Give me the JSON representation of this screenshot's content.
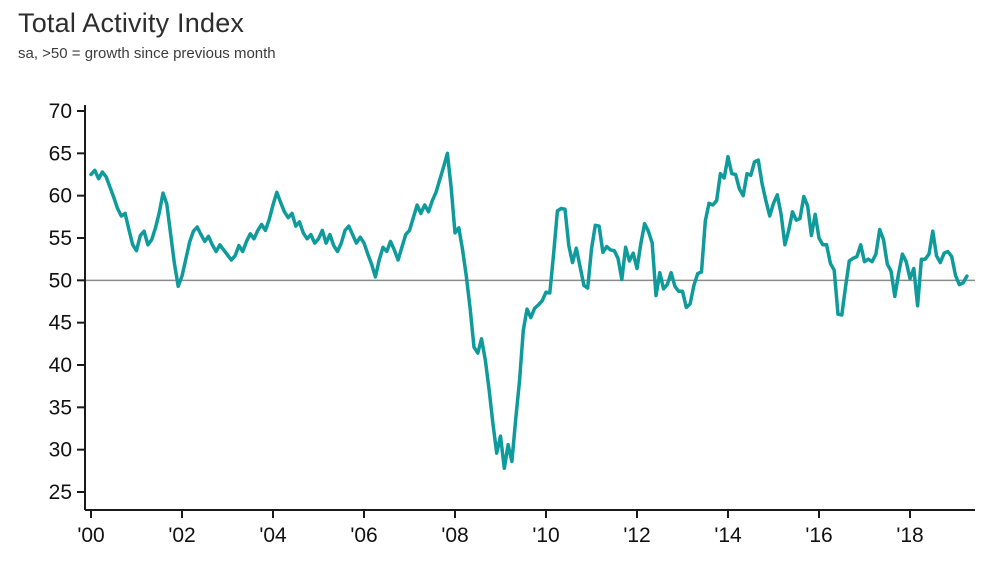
{
  "header": {
    "title": "Total Activity Index",
    "subtitle": "sa, >50 = growth since previous month"
  },
  "chart_data": {
    "type": "line",
    "title": "Total Activity Index",
    "subtitle": "sa, >50 = growth since previous month",
    "series_name": "Total Activity Index (sa)",
    "frequency": "monthly",
    "x_start_year": 2000,
    "x_start_month": 1,
    "x_end_label": "2019-04",
    "ylim": [
      25,
      70
    ],
    "y_ticks": [
      70,
      65,
      60,
      55,
      50,
      45,
      40,
      35,
      30,
      25
    ],
    "x_ticks": [
      {
        "year": 2000,
        "label": "'00"
      },
      {
        "year": 2002,
        "label": "'02"
      },
      {
        "year": 2004,
        "label": "'04"
      },
      {
        "year": 2006,
        "label": "'06"
      },
      {
        "year": 2008,
        "label": "'08"
      },
      {
        "year": 2010,
        "label": "'10"
      },
      {
        "year": 2012,
        "label": "'12"
      },
      {
        "year": 2014,
        "label": "'14"
      },
      {
        "year": 2016,
        "label": "'16"
      },
      {
        "year": 2018,
        "label": "'18"
      }
    ],
    "reference_line": 50,
    "grid": false,
    "legend": "none",
    "colors": {
      "line": "#0f9b9b",
      "axis": "#1a1a1a",
      "text": "#111111",
      "reference": "#8a8a8a"
    },
    "values": [
      62.5,
      63.0,
      62.0,
      62.8,
      62.2,
      61.0,
      59.8,
      58.5,
      57.6,
      57.9,
      56.0,
      54.2,
      53.5,
      55.3,
      55.8,
      54.2,
      54.8,
      56.2,
      58.0,
      60.3,
      59.0,
      55.5,
      52.0,
      49.3,
      50.5,
      52.5,
      54.5,
      55.8,
      56.3,
      55.4,
      54.6,
      55.2,
      54.2,
      53.4,
      54.2,
      53.6,
      53.0,
      52.4,
      52.9,
      54.1,
      53.4,
      54.6,
      55.5,
      54.9,
      55.9,
      56.6,
      55.9,
      57.2,
      58.9,
      60.4,
      59.2,
      58.1,
      57.4,
      57.9,
      56.4,
      56.9,
      55.6,
      54.9,
      55.4,
      54.4,
      54.9,
      55.9,
      54.4,
      55.4,
      54.1,
      53.4,
      54.4,
      55.9,
      56.4,
      55.4,
      54.4,
      55.1,
      54.4,
      53.1,
      51.9,
      50.4,
      52.4,
      53.9,
      53.4,
      54.6,
      53.6,
      52.4,
      53.9,
      55.4,
      55.9,
      57.4,
      58.9,
      57.9,
      58.9,
      58.1,
      59.4,
      60.4,
      61.9,
      63.4,
      65.0,
      60.9,
      55.6,
      56.2,
      53.6,
      50.4,
      46.6,
      42.1,
      41.4,
      43.1,
      40.6,
      37.1,
      33.1,
      29.6,
      31.6,
      27.8,
      30.6,
      28.6,
      33.6,
      38.1,
      44.1,
      46.6,
      45.6,
      46.7,
      47.1,
      47.6,
      48.6,
      48.5,
      53.1,
      58.2,
      58.5,
      58.4,
      54.1,
      52.1,
      53.8,
      51.6,
      49.4,
      49.1,
      53.7,
      56.5,
      56.4,
      53.3,
      54.0,
      53.6,
      53.5,
      52.6,
      50.1,
      53.9,
      52.3,
      53.2,
      51.4,
      54.3,
      56.7,
      55.8,
      54.4,
      48.2,
      50.9,
      49.0,
      49.5,
      50.9,
      49.3,
      48.7,
      48.7,
      46.8,
      47.2,
      49.4,
      50.8,
      51.0,
      57.0,
      59.1,
      58.9,
      59.4,
      62.6,
      62.1,
      64.6,
      62.6,
      62.5,
      60.8,
      60.0,
      62.6,
      62.4,
      64.0,
      64.2,
      61.4,
      59.4,
      57.6,
      59.1,
      60.1,
      57.8,
      54.2,
      55.9,
      58.1,
      57.1,
      57.3,
      59.9,
      58.8,
      55.3,
      57.8,
      55.0,
      54.2,
      54.2,
      52.0,
      51.2,
      46.0,
      45.9,
      49.2,
      52.3,
      52.6,
      52.8,
      54.2,
      52.2,
      52.5,
      52.2,
      53.1,
      56.0,
      54.8,
      51.9,
      51.1,
      48.1,
      50.8,
      53.1,
      52.2,
      50.2,
      51.4,
      47.0,
      52.5,
      52.5,
      53.1,
      55.8,
      52.9,
      52.1,
      53.2,
      53.4,
      52.8,
      50.6,
      49.5,
      49.7,
      50.5
    ]
  }
}
